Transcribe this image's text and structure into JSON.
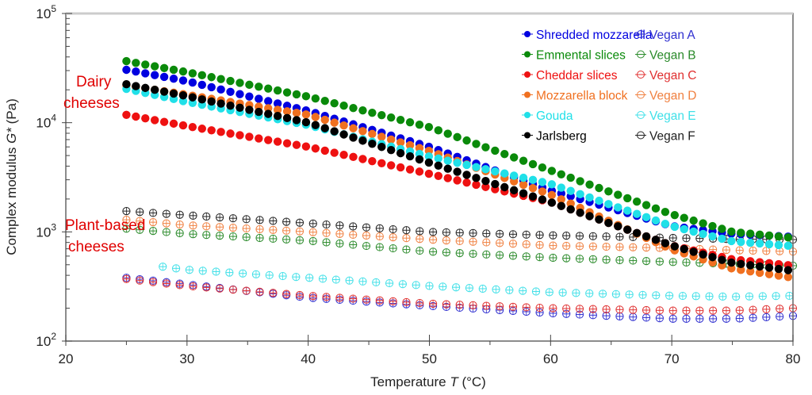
{
  "chart_data": {
    "type": "scatter",
    "xlabel": "Temperature T (°C)",
    "xlabel_main": "Temperature ",
    "xlabel_var": "T",
    "xlabel_unit": " (°C)",
    "ylabel_main": "Complex modulus ",
    "ylabel_var": "G*",
    "ylabel_unit": " (Pa)",
    "xlim": [
      20,
      80
    ],
    "ylim": [
      100,
      100000
    ],
    "yscale": "log",
    "x_ticks": [
      "20",
      "30",
      "40",
      "50",
      "60",
      "70",
      "80"
    ],
    "y_ticks": [
      {
        "base": "10",
        "exp": "2"
      },
      {
        "base": "10",
        "exp": "3"
      },
      {
        "base": "10",
        "exp": "4"
      },
      {
        "base": "10",
        "exp": "5"
      }
    ],
    "grid": false,
    "legend_placement": "top-right",
    "annotations": [
      {
        "lines": [
          "Dairy",
          "cheeses"
        ],
        "color": "#e00000"
      },
      {
        "lines": [
          "Plant-based",
          "cheeses"
        ],
        "color": "#e00000"
      }
    ],
    "series": [
      {
        "name": "Shredded mozzarella",
        "color": "#0000e0",
        "marker": "filled",
        "x": [
          25,
          30,
          40,
          50,
          60,
          70,
          75,
          80
        ],
        "y": [
          30500,
          24000,
          12800,
          6000,
          2400,
          1130,
          960,
          900
        ]
      },
      {
        "name": "Emmental slices",
        "color": "#0a8a0a",
        "marker": "filled",
        "x": [
          25,
          30,
          40,
          50,
          60,
          70,
          75,
          80
        ],
        "y": [
          36600,
          29000,
          17300,
          9100,
          3650,
          1450,
          1000,
          880
        ]
      },
      {
        "name": "Cheddar slices",
        "color": "#ee1111",
        "marker": "filled",
        "x": [
          25,
          30,
          40,
          50,
          60,
          70,
          75,
          80
        ],
        "y": [
          11800,
          9300,
          6000,
          3400,
          1870,
          750,
          560,
          490
        ]
      },
      {
        "name": "Mozzarella block",
        "color": "#f07020",
        "marker": "filled",
        "x": [
          25,
          30,
          40,
          50,
          60,
          70,
          75,
          80
        ],
        "y": [
          22000,
          18000,
          11800,
          5500,
          2200,
          690,
          460,
          380
        ]
      },
      {
        "name": "Gouda",
        "color": "#20e0e8",
        "marker": "filled",
        "x": [
          25,
          30,
          40,
          50,
          60,
          70,
          75,
          80
        ],
        "y": [
          20400,
          15500,
          9500,
          4900,
          2750,
          1130,
          820,
          740
        ]
      },
      {
        "name": "Jarlsberg",
        "color": "#000000",
        "marker": "filled",
        "x": [
          25,
          30,
          40,
          50,
          60,
          70,
          75,
          80
        ],
        "y": [
          22500,
          17500,
          10000,
          4300,
          1870,
          750,
          520,
          440
        ]
      },
      {
        "name": "Vegan A",
        "color": "#3030d0",
        "marker": "open",
        "x": [
          25,
          30,
          40,
          50,
          60,
          70,
          75,
          80
        ],
        "y": [
          380,
          330,
          250,
          210,
          180,
          160,
          160,
          170
        ]
      },
      {
        "name": "Vegan B",
        "color": "#2a8a2a",
        "marker": "open",
        "x": [
          25,
          30,
          40,
          50,
          60,
          70,
          75,
          80
        ],
        "y": [
          1070,
          960,
          830,
          660,
          580,
          530,
          510,
          490
        ]
      },
      {
        "name": "Vegan C",
        "color": "#e03030",
        "marker": "open",
        "x": [
          25,
          30,
          40,
          50,
          60,
          70,
          75,
          80
        ],
        "y": [
          370,
          320,
          260,
          220,
          200,
          190,
          190,
          200
        ]
      },
      {
        "name": "Vegan D",
        "color": "#f08040",
        "marker": "open",
        "x": [
          25,
          30,
          40,
          50,
          60,
          70,
          75,
          80
        ],
        "y": [
          1290,
          1150,
          1000,
          850,
          750,
          710,
          680,
          660
        ]
      },
      {
        "name": "Vegan E",
        "color": "#40e0e8",
        "marker": "open",
        "x": [
          28,
          30,
          40,
          50,
          60,
          70,
          75,
          80
        ],
        "y": [
          480,
          450,
          380,
          320,
          280,
          260,
          255,
          260
        ]
      },
      {
        "name": "Vegan F",
        "color": "#202020",
        "marker": "open",
        "x": [
          25,
          30,
          40,
          50,
          60,
          70,
          75,
          80
        ],
        "y": [
          1550,
          1420,
          1200,
          1000,
          930,
          880,
          860,
          850
        ]
      }
    ]
  }
}
